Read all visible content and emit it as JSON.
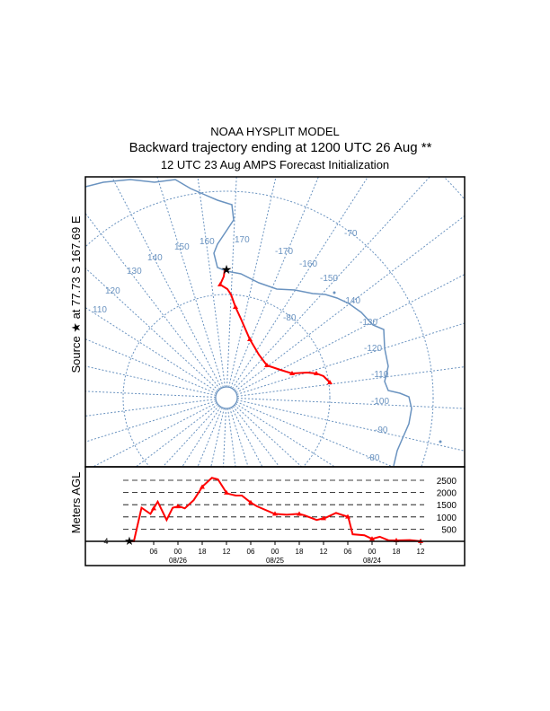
{
  "title": {
    "line1": "NOAA HYSPLIT MODEL",
    "line2": "Backward trajectory ending at 1200 UTC 26 Aug **",
    "line3": "12 UTC 23 Aug    AMPS  Forecast Initialization"
  },
  "source_label": "Source ★ at   77.73 S  167.69 E",
  "colors": {
    "grid": "#6a93c0",
    "trajectory": "#ff0000",
    "coast": "#6a93c0"
  },
  "map": {
    "longitude_labels": [
      "110",
      "120",
      "130",
      "140",
      "150",
      "160",
      "170",
      "-170",
      "-160",
      "-150",
      "-140",
      "-130",
      "-120",
      "-110",
      "-100",
      "-90",
      "-80"
    ],
    "latitude_labels": [
      "-80",
      "-70"
    ]
  },
  "chart_data": {
    "type": "line",
    "title": "Backward trajectory ending at 1200 UTC 26 Aug **",
    "ylabel": "Meters AGL",
    "xlabel": "",
    "ylim": [
      0,
      2700
    ],
    "yticks": [
      "500",
      "1000",
      "1500",
      "2000",
      "2500"
    ],
    "ytick_values": [
      500,
      1000,
      1500,
      2000,
      2500
    ],
    "start_height_label": "4",
    "xtick_labels": [
      "06",
      "00",
      "18",
      "12",
      "06",
      "00",
      "18",
      "12",
      "06",
      "00",
      "18",
      "12"
    ],
    "xtick_hours_back": [
      6,
      12,
      18,
      24,
      30,
      36,
      42,
      48,
      54,
      60,
      66,
      72
    ],
    "date_labels": [
      {
        "text": "08/26",
        "hours_back": 12
      },
      {
        "text": "08/25",
        "hours_back": 36
      },
      {
        "text": "08/24",
        "hours_back": 60
      }
    ],
    "series": [
      {
        "name": "trajectory height",
        "hours_back": [
          0,
          1.1,
          3,
          5.2,
          7,
          9.2,
          10.7,
          12.2,
          13.7,
          15.9,
          18.1,
          20.4,
          21.9,
          24.1,
          26.3,
          27.8,
          30,
          31.5,
          35.9,
          38.9,
          41.9,
          43.3,
          46.3,
          48.5,
          51.1,
          54.1,
          55.2,
          58.1,
          60,
          61.9,
          64.1,
          66.3,
          69.3,
          72.2
        ],
        "values": [
          0,
          0,
          1375,
          1125,
          1625,
          875,
          1375,
          1438,
          1350,
          1688,
          2250,
          2600,
          2537,
          1962,
          1875,
          1875,
          1588,
          1438,
          1125,
          1088,
          1125,
          1063,
          875,
          963,
          1163,
          1000,
          288,
          250,
          100,
          188,
          38,
          38,
          50,
          0
        ]
      }
    ]
  }
}
